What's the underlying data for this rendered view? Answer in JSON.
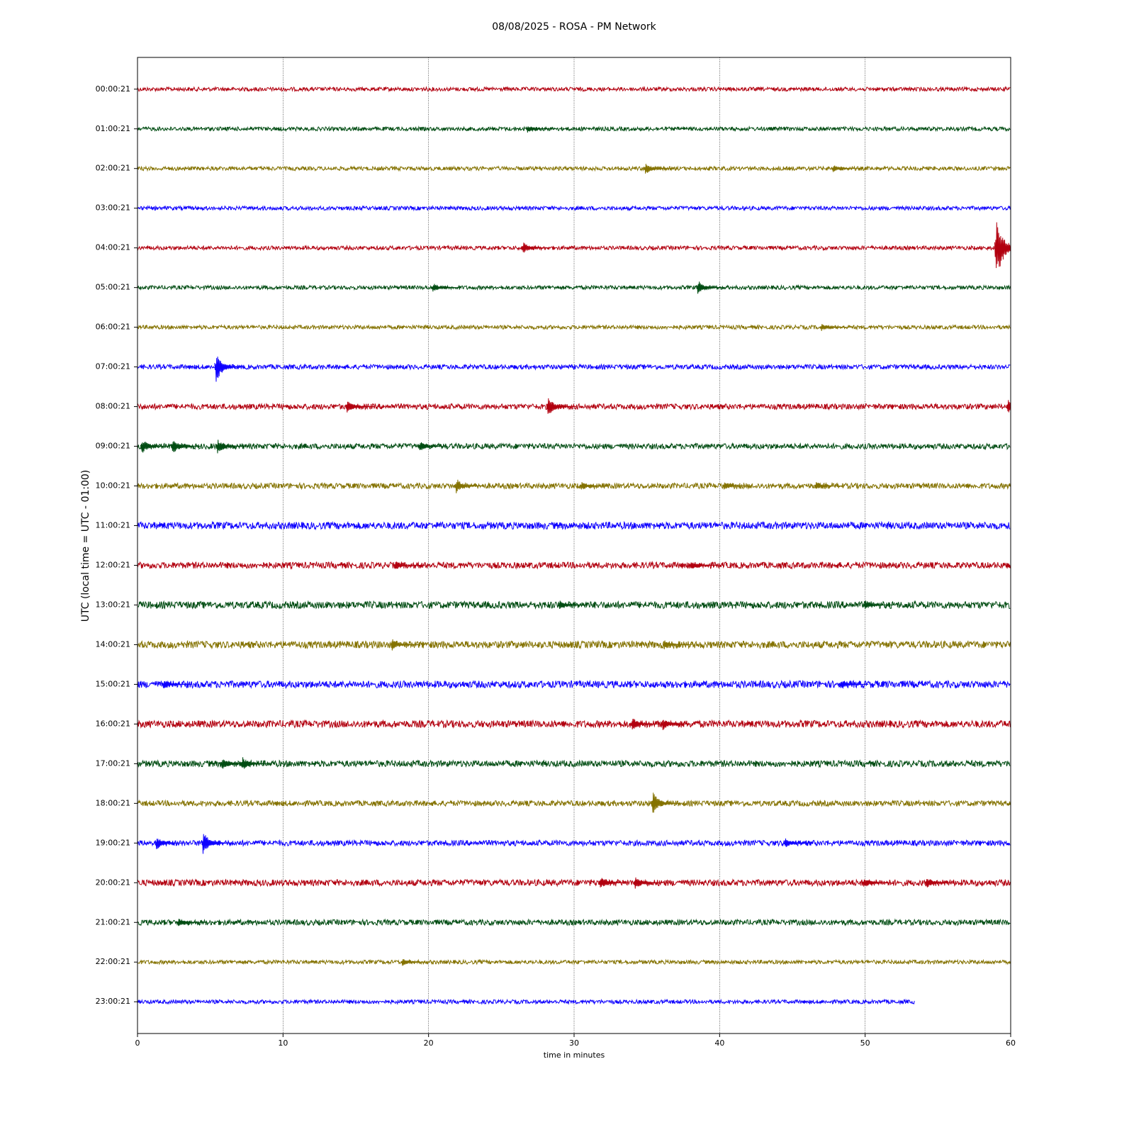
{
  "chart_data": {
    "type": "helicorder",
    "title": "08/08/2025 - ROSA - PM Network",
    "xlabel": "time in minutes",
    "ylabel": "UTC (local time = UTC - 01:00)",
    "xlim": [
      0,
      60
    ],
    "xticks": [
      0,
      10,
      20,
      30,
      40,
      50,
      60
    ],
    "grid": true,
    "series": [
      {
        "name": "00:00:21",
        "color": "#b2000f",
        "end": 60,
        "noise": 0.05,
        "events": []
      },
      {
        "name": "01:00:21",
        "color": "#004c12",
        "end": 60,
        "noise": 0.05,
        "events": [
          {
            "x": 26.8,
            "amplitude": 0.1
          }
        ]
      },
      {
        "name": "02:00:21",
        "color": "#847200",
        "end": 60,
        "noise": 0.05,
        "events": [
          {
            "x": 34.9,
            "amplitude": 0.15
          },
          {
            "x": 47.8,
            "amplitude": 0.1
          }
        ]
      },
      {
        "name": "03:00:21",
        "color": "#0e01ff",
        "end": 60,
        "noise": 0.05,
        "events": []
      },
      {
        "name": "04:00:21",
        "color": "#b2000f",
        "end": 60,
        "noise": 0.05,
        "events": [
          {
            "x": 26.5,
            "amplitude": 0.15
          },
          {
            "x": 59,
            "amplitude": 0.9
          }
        ]
      },
      {
        "name": "05:00:21",
        "color": "#004c12",
        "end": 60,
        "noise": 0.05,
        "events": [
          {
            "x": 20.3,
            "amplitude": 0.12
          },
          {
            "x": 38.5,
            "amplitude": 0.2
          }
        ]
      },
      {
        "name": "06:00:21",
        "color": "#847200",
        "end": 60,
        "noise": 0.05,
        "events": [
          {
            "x": 47,
            "amplitude": 0.1
          }
        ]
      },
      {
        "name": "07:00:21",
        "color": "#0e01ff",
        "end": 60,
        "noise": 0.06,
        "events": [
          {
            "x": 5.4,
            "amplitude": 0.4
          }
        ]
      },
      {
        "name": "08:00:21",
        "color": "#b2000f",
        "end": 60,
        "noise": 0.07,
        "events": [
          {
            "x": 14.4,
            "amplitude": 0.18
          },
          {
            "x": 28.2,
            "amplitude": 0.25
          },
          {
            "x": 59.8,
            "amplitude": 0.18
          }
        ]
      },
      {
        "name": "09:00:21",
        "color": "#004c12",
        "end": 60,
        "noise": 0.07,
        "events": [
          {
            "x": 0.3,
            "amplitude": 0.2
          },
          {
            "x": 2.4,
            "amplitude": 0.2
          },
          {
            "x": 5.5,
            "amplitude": 0.2
          },
          {
            "x": 19.4,
            "amplitude": 0.15
          }
        ]
      },
      {
        "name": "10:00:21",
        "color": "#847200",
        "end": 60,
        "noise": 0.07,
        "events": [
          {
            "x": 21.9,
            "amplitude": 0.2
          },
          {
            "x": 30.5,
            "amplitude": 0.12
          },
          {
            "x": 40.3,
            "amplitude": 0.12
          },
          {
            "x": 46.6,
            "amplitude": 0.12
          }
        ]
      },
      {
        "name": "11:00:21",
        "color": "#0e01ff",
        "end": 60,
        "noise": 0.09,
        "events": []
      },
      {
        "name": "12:00:21",
        "color": "#b2000f",
        "end": 60,
        "noise": 0.08,
        "events": [
          {
            "x": 17.7,
            "amplitude": 0.12
          },
          {
            "x": 38,
            "amplitude": 0.12
          }
        ]
      },
      {
        "name": "13:00:21",
        "color": "#004c12",
        "end": 60,
        "noise": 0.09,
        "events": [
          {
            "x": 29,
            "amplitude": 0.12
          },
          {
            "x": 50,
            "amplitude": 0.12
          }
        ]
      },
      {
        "name": "14:00:21",
        "color": "#847200",
        "end": 60,
        "noise": 0.09,
        "events": [
          {
            "x": 17.5,
            "amplitude": 0.15
          },
          {
            "x": 36.2,
            "amplitude": 0.12
          }
        ]
      },
      {
        "name": "15:00:21",
        "color": "#0e01ff",
        "end": 60,
        "noise": 0.09,
        "events": [
          {
            "x": 1.8,
            "amplitude": 0.13
          },
          {
            "x": 48.3,
            "amplitude": 0.12
          }
        ]
      },
      {
        "name": "16:00:21",
        "color": "#b2000f",
        "end": 60,
        "noise": 0.09,
        "events": [
          {
            "x": 34,
            "amplitude": 0.18
          },
          {
            "x": 36.1,
            "amplitude": 0.16
          }
        ]
      },
      {
        "name": "17:00:21",
        "color": "#004c12",
        "end": 60,
        "noise": 0.08,
        "events": [
          {
            "x": 5.8,
            "amplitude": 0.18
          },
          {
            "x": 7.2,
            "amplitude": 0.18
          }
        ]
      },
      {
        "name": "18:00:21",
        "color": "#847200",
        "end": 60,
        "noise": 0.07,
        "events": [
          {
            "x": 35.4,
            "amplitude": 0.3
          }
        ]
      },
      {
        "name": "19:00:21",
        "color": "#0e01ff",
        "end": 60,
        "noise": 0.07,
        "events": [
          {
            "x": 1.3,
            "amplitude": 0.2
          },
          {
            "x": 4.5,
            "amplitude": 0.3
          },
          {
            "x": 44.5,
            "amplitude": 0.13
          }
        ]
      },
      {
        "name": "20:00:21",
        "color": "#b2000f",
        "end": 60,
        "noise": 0.08,
        "events": [
          {
            "x": 31.8,
            "amplitude": 0.18
          },
          {
            "x": 34.2,
            "amplitude": 0.17
          },
          {
            "x": 49.9,
            "amplitude": 0.15
          },
          {
            "x": 54.2,
            "amplitude": 0.15
          }
        ]
      },
      {
        "name": "21:00:21",
        "color": "#004c12",
        "end": 60,
        "noise": 0.07,
        "events": [
          {
            "x": 2.8,
            "amplitude": 0.12
          }
        ]
      },
      {
        "name": "22:00:21",
        "color": "#847200",
        "end": 60,
        "noise": 0.05,
        "events": [
          {
            "x": 18.2,
            "amplitude": 0.1
          }
        ]
      },
      {
        "name": "23:00:21",
        "color": "#0e01ff",
        "end": 53.4,
        "noise": 0.05,
        "events": []
      }
    ]
  }
}
